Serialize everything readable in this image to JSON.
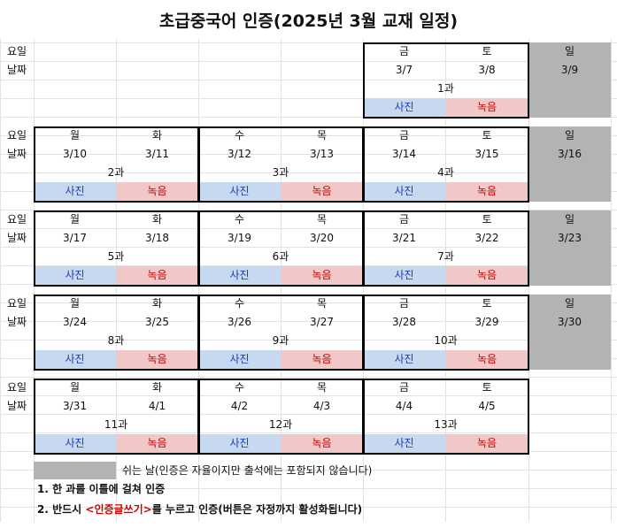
{
  "title": "초급중국어 인증(2025년 3월 교재 일정)",
  "row_labels": {
    "day": "요일",
    "date": "날짜"
  },
  "days": {
    "mon": "월",
    "tue": "화",
    "wed": "수",
    "thu": "목",
    "fri": "금",
    "sat": "토",
    "sun": "일"
  },
  "buttons": {
    "photo": "사진",
    "record": "녹음"
  },
  "weeks": [
    {
      "dates": [
        "",
        "",
        "",
        "",
        "3/7",
        "3/8",
        "3/9"
      ],
      "lessons": [
        "",
        "",
        "1과"
      ]
    },
    {
      "dates": [
        "3/10",
        "3/11",
        "3/12",
        "3/13",
        "3/14",
        "3/15",
        "3/16"
      ],
      "lessons": [
        "2과",
        "3과",
        "4과"
      ]
    },
    {
      "dates": [
        "3/17",
        "3/18",
        "3/19",
        "3/20",
        "3/21",
        "3/22",
        "3/23"
      ],
      "lessons": [
        "5과",
        "6과",
        "7과"
      ]
    },
    {
      "dates": [
        "3/24",
        "3/25",
        "3/26",
        "3/27",
        "3/28",
        "3/29",
        "3/30"
      ],
      "lessons": [
        "8과",
        "9과",
        "10과"
      ]
    },
    {
      "dates": [
        "3/31",
        "4/1",
        "4/2",
        "4/3",
        "4/4",
        "4/5",
        ""
      ],
      "lessons": [
        "11과",
        "12과",
        "13과"
      ]
    }
  ],
  "legend": "쉬는 날(인증은 자율이지만 출석에는 포함되지 않습니다)",
  "notes": {
    "n1": "1. 한 과를 이틀에 걸쳐 인증",
    "n2_pre": "2. 반드시 ",
    "n2_highlight": "<인증글쓰기>",
    "n2_post": "를 누르고 인증(버튼은 자정까지 활성화됩니다)"
  },
  "colors": {
    "photo_bg": "#c6d9f1",
    "record_bg": "#f2c7c7",
    "rest_gray": "#b3b3b3",
    "highlight_red": "#d40000"
  }
}
